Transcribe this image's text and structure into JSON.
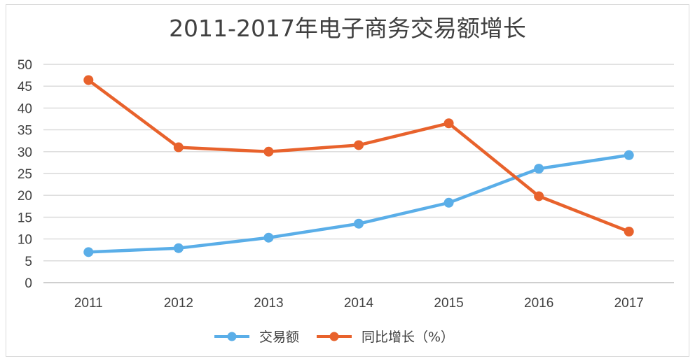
{
  "chart_data": {
    "type": "line",
    "title": "2011-2017年电子商务交易额增长",
    "xlabel": "",
    "ylabel": "",
    "categories": [
      "2011",
      "2012",
      "2013",
      "2014",
      "2015",
      "2016",
      "2017"
    ],
    "ylim": [
      0,
      50
    ],
    "yticks": [
      "0",
      "5",
      "10",
      "15",
      "20",
      "25",
      "30",
      "35",
      "40",
      "45",
      "50"
    ],
    "grid": true,
    "legend_position": "bottom",
    "series": [
      {
        "name": "交易额",
        "color": "#5aaee8",
        "values": [
          7.0,
          7.9,
          10.3,
          13.5,
          18.3,
          26.1,
          29.2
        ]
      },
      {
        "name": "同比增长（%）",
        "color": "#e8622c",
        "values": [
          46.4,
          31.0,
          30.0,
          31.5,
          36.5,
          19.8,
          11.7
        ]
      }
    ]
  }
}
